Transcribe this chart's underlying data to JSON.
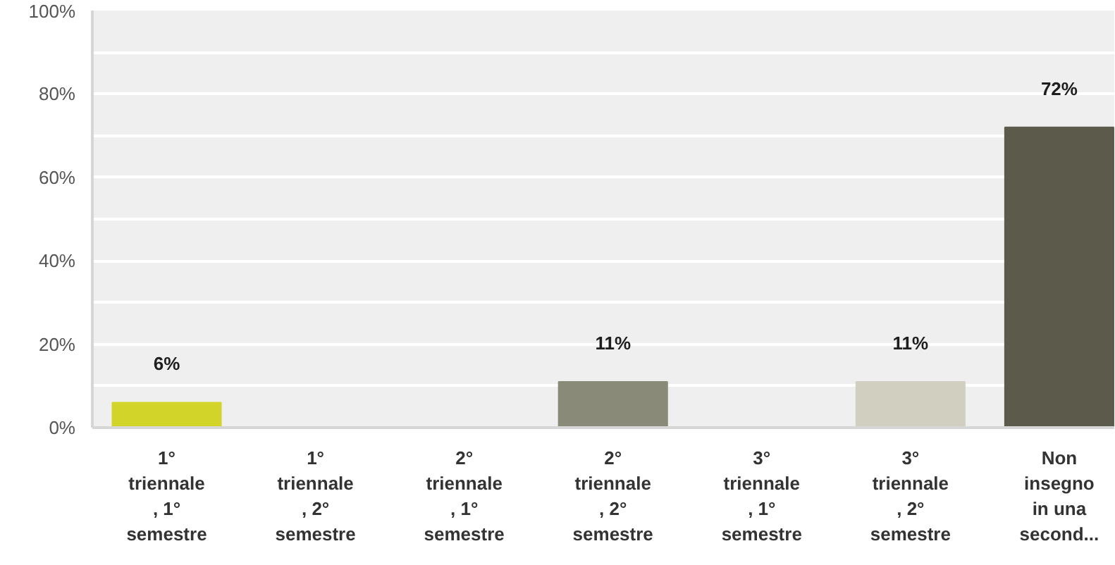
{
  "chart_data": {
    "type": "bar",
    "categories": [
      "1°\ntriennale\n, 1°\nsemestre",
      "1°\ntriennale\n, 2°\nsemestre",
      "2°\ntriennale\n, 1°\nsemestre",
      "2°\ntriennale\n, 2°\nsemestre",
      "3°\ntriennale\n, 1°\nsemestre",
      "3°\ntriennale\n, 2°\nsemestre",
      "Non\ninsegno\nin una\nsecond..."
    ],
    "values": [
      6,
      0,
      0,
      11,
      0,
      11,
      72
    ],
    "colors": [
      "#d2d42a",
      null,
      null,
      "#8a8a78",
      null,
      "#d0cfc0",
      "#5c5a4a"
    ],
    "value_labels": [
      "6%",
      null,
      null,
      "11%",
      null,
      "11%",
      "72%"
    ],
    "ylim": [
      0,
      100
    ],
    "yticks": [
      {
        "value": 0,
        "label": "0%"
      },
      {
        "value": 10,
        "label": null
      },
      {
        "value": 20,
        "label": "20%"
      },
      {
        "value": 30,
        "label": null
      },
      {
        "value": 40,
        "label": "40%"
      },
      {
        "value": 50,
        "label": null
      },
      {
        "value": 60,
        "label": "60%"
      },
      {
        "value": 70,
        "label": null
      },
      {
        "value": 80,
        "label": "80%"
      },
      {
        "value": 90,
        "label": null
      },
      {
        "value": 100,
        "label": "100%"
      }
    ],
    "grid": "y"
  }
}
